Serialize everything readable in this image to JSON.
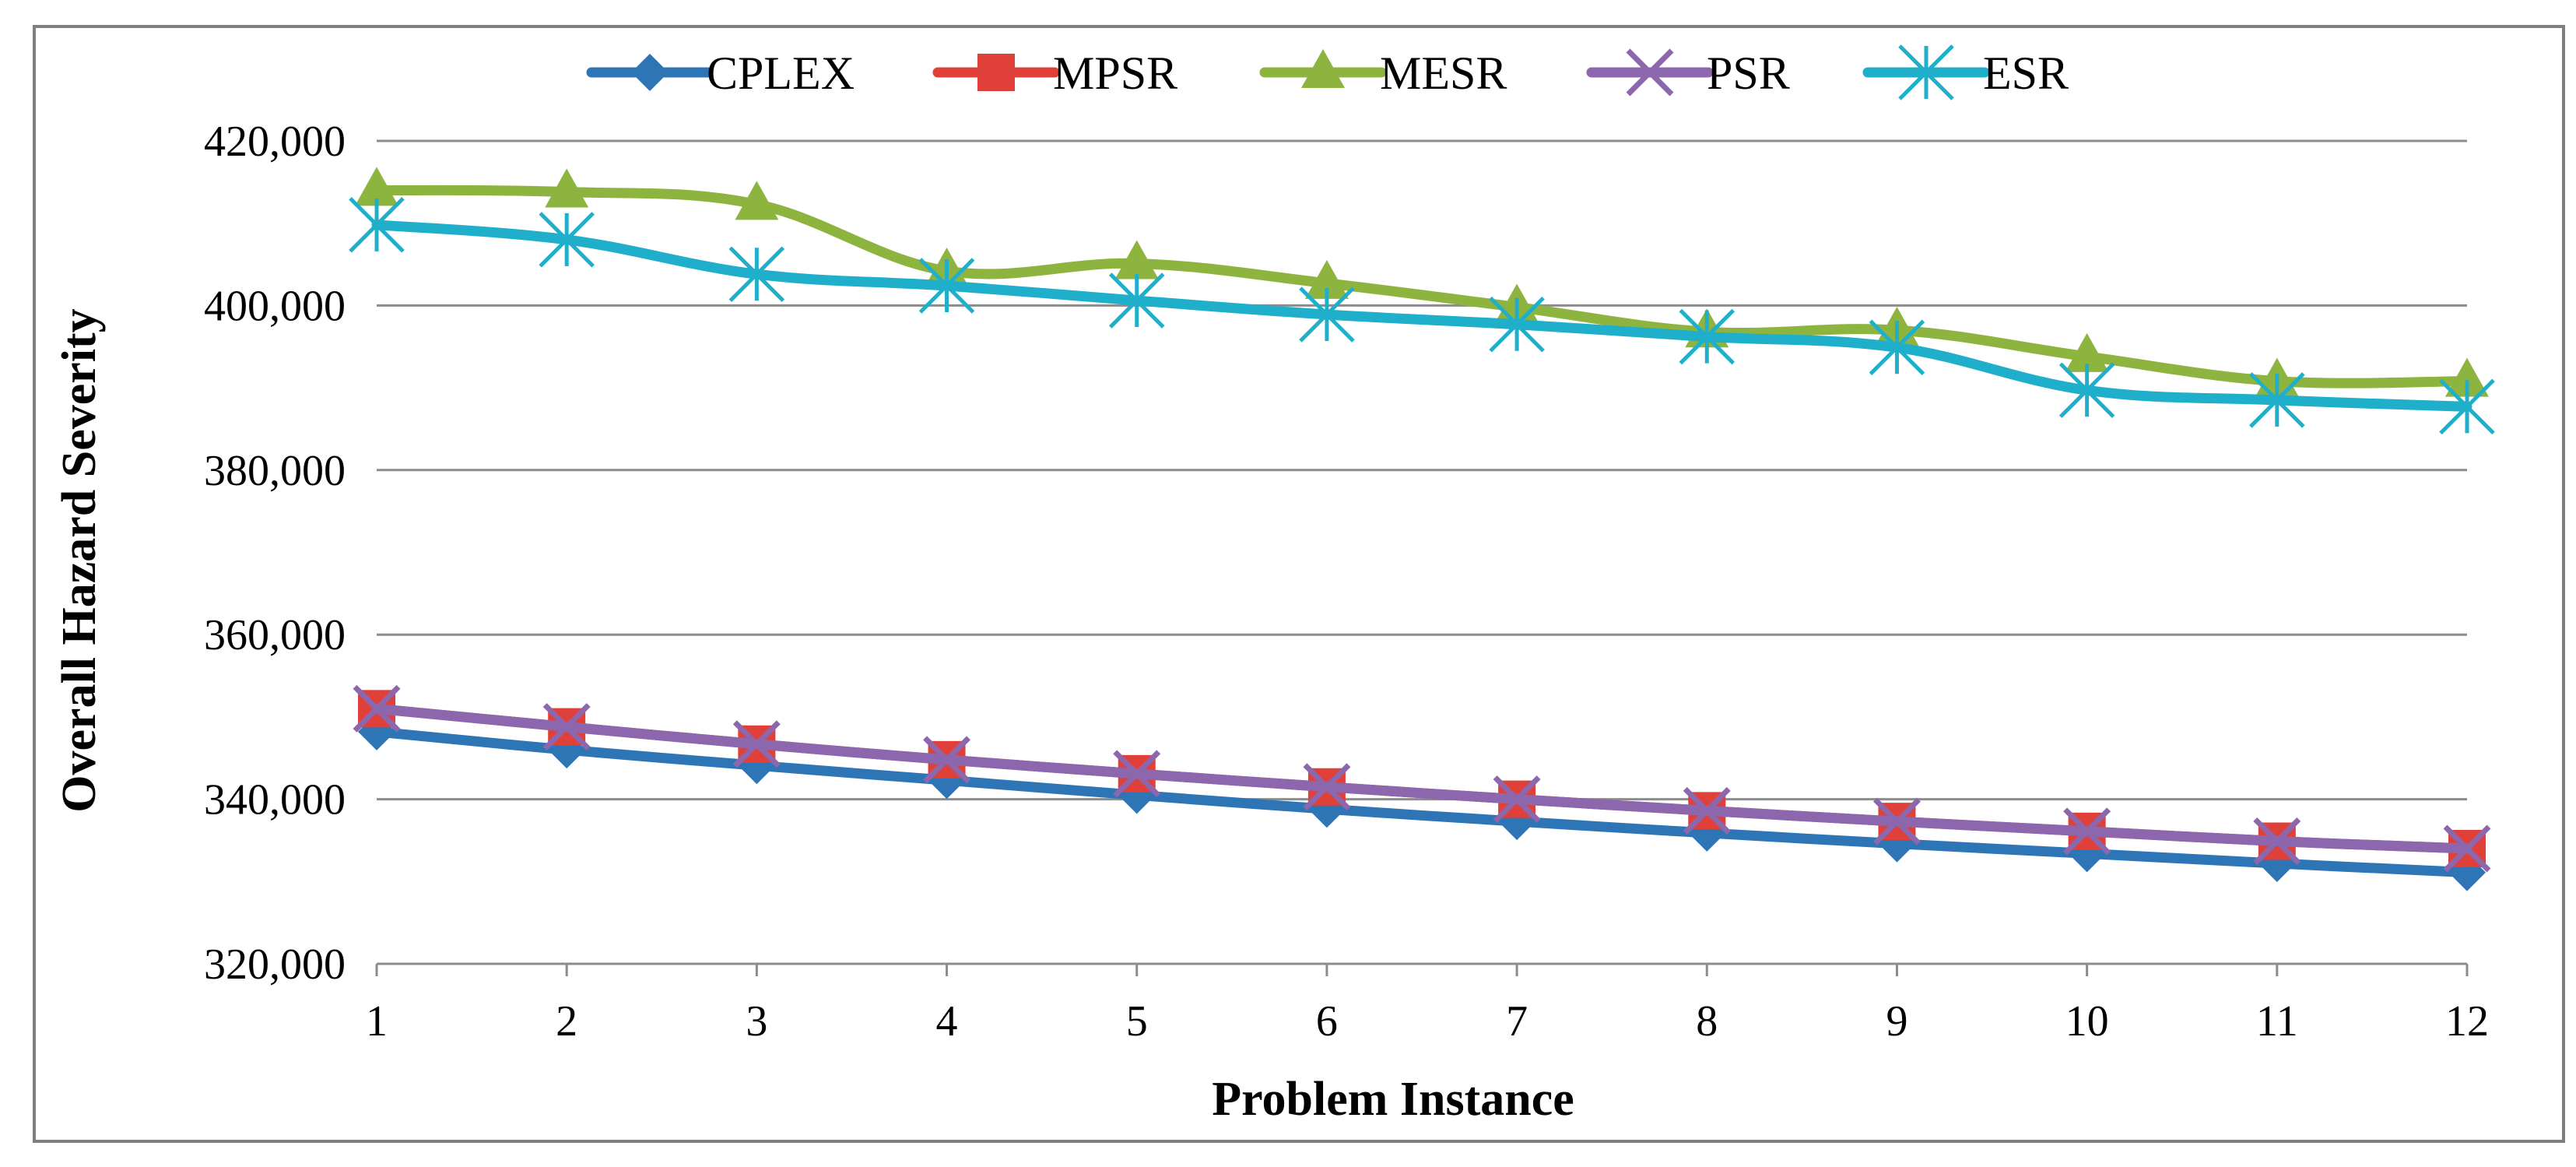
{
  "chart_data": {
    "type": "line",
    "title": "",
    "xlabel": "Problem Instance",
    "ylabel": "Overall Hazard Severity",
    "categories": [
      "1",
      "2",
      "3",
      "4",
      "5",
      "6",
      "7",
      "8",
      "9",
      "10",
      "11",
      "12"
    ],
    "ylim": [
      320000,
      420000
    ],
    "yticks": [
      320000,
      340000,
      360000,
      380000,
      400000,
      420000
    ],
    "ytick_labels": [
      "320,000",
      "340,000",
      "360,000",
      "380,000",
      "400,000",
      "420,000"
    ],
    "grid": true,
    "legend_position": "top",
    "series": [
      {
        "name": "CPLEX",
        "color": "#2E75B6",
        "marker": "diamond",
        "values": [
          348200,
          346000,
          344100,
          342300,
          340500,
          338800,
          337300,
          335900,
          334600,
          333400,
          332200,
          331100
        ]
      },
      {
        "name": "MPSR",
        "color": "#E0403A",
        "marker": "square",
        "values": [
          351000,
          348800,
          346700,
          344800,
          343100,
          341500,
          340000,
          338600,
          337300,
          336100,
          334900,
          334000
        ]
      },
      {
        "name": "MESR",
        "color": "#8DB43E",
        "marker": "triangle",
        "values": [
          414000,
          413800,
          412300,
          404200,
          405100,
          402700,
          399800,
          396800,
          397000,
          393800,
          390800,
          390800
        ]
      },
      {
        "name": "PSR",
        "color": "#8C67AE",
        "marker": "x",
        "values": [
          351000,
          348800,
          346700,
          344800,
          343100,
          341500,
          340000,
          338600,
          337300,
          336100,
          334900,
          334000
        ]
      },
      {
        "name": "ESR",
        "color": "#1FAFCB",
        "marker": "asterisk",
        "values": [
          409800,
          408000,
          403800,
          402400,
          400600,
          398900,
          397700,
          396200,
          394900,
          389700,
          388500,
          387700
        ]
      }
    ]
  }
}
